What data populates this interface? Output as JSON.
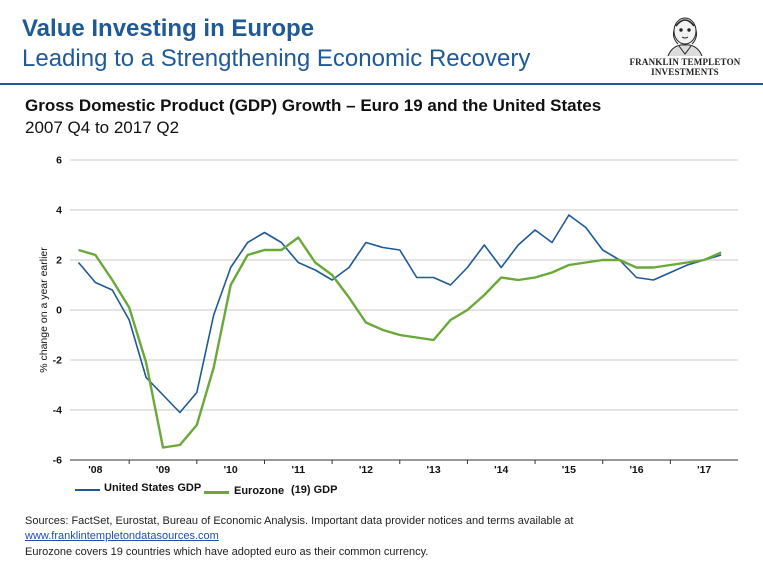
{
  "header": {
    "title": "Value Investing in Europe",
    "subtitle": "Leading to a Strengthening Economic Recovery"
  },
  "logo": {
    "line1": "FRANKLIN TEMPLETON",
    "line2": "INVESTMENTS",
    "icon": "benjamin-franklin-portrait"
  },
  "chart_data": {
    "type": "line",
    "title": "Gross Domestic Product (GDP) Growth – Euro 19 and the United States",
    "subtitle": "2007 Q4 to 2017 Q2",
    "ylabel": "% change on a year earlier",
    "xlabel": "",
    "ylim": [
      -6,
      6
    ],
    "yticks": [
      6,
      4,
      2,
      0,
      -2,
      -4,
      -6
    ],
    "xlim": [
      2007.625,
      2017.5
    ],
    "xticks": [
      {
        "label": "'08",
        "x": 2008
      },
      {
        "label": "'09",
        "x": 2009
      },
      {
        "label": "'10",
        "x": 2010
      },
      {
        "label": "'11",
        "x": 2011
      },
      {
        "label": "'12",
        "x": 2012
      },
      {
        "label": "'13",
        "x": 2013
      },
      {
        "label": "'14",
        "x": 2014
      },
      {
        "label": "'15",
        "x": 2015
      },
      {
        "label": "'16",
        "x": 2016
      },
      {
        "label": "'17",
        "x": 2017
      }
    ],
    "grid": "horizontal",
    "legend_position": "bottom-left",
    "series": [
      {
        "name": "United States GDP",
        "color": "#1f5a96",
        "x": [
          2007.75,
          2008.0,
          2008.25,
          2008.5,
          2008.75,
          2009.0,
          2009.25,
          2009.5,
          2009.75,
          2010.0,
          2010.25,
          2010.5,
          2010.75,
          2011.0,
          2011.25,
          2011.5,
          2011.75,
          2012.0,
          2012.25,
          2012.5,
          2012.75,
          2013.0,
          2013.25,
          2013.5,
          2013.75,
          2014.0,
          2014.25,
          2014.5,
          2014.75,
          2015.0,
          2015.25,
          2015.5,
          2015.75,
          2016.0,
          2016.25,
          2016.5,
          2016.75,
          2017.0,
          2017.25
        ],
        "values": [
          1.9,
          1.1,
          0.8,
          -0.4,
          -2.7,
          -3.4,
          -4.1,
          -3.3,
          -0.2,
          1.7,
          2.7,
          3.1,
          2.7,
          1.9,
          1.6,
          1.2,
          1.7,
          2.7,
          2.5,
          2.4,
          1.3,
          1.3,
          1.0,
          1.7,
          2.6,
          1.7,
          2.6,
          3.2,
          2.7,
          3.8,
          3.3,
          2.4,
          2.0,
          1.3,
          1.2,
          1.5,
          1.8,
          2.0,
          2.2
        ]
      },
      {
        "name": "Eurozone (19) GDP",
        "color": "#6aa83a",
        "x": [
          2007.75,
          2008.0,
          2008.25,
          2008.5,
          2008.75,
          2009.0,
          2009.25,
          2009.5,
          2009.75,
          2010.0,
          2010.25,
          2010.5,
          2010.75,
          2011.0,
          2011.25,
          2011.5,
          2011.75,
          2012.0,
          2012.25,
          2012.5,
          2012.75,
          2013.0,
          2013.25,
          2013.5,
          2013.75,
          2014.0,
          2014.25,
          2014.5,
          2014.75,
          2015.0,
          2015.25,
          2015.5,
          2015.75,
          2016.0,
          2016.25,
          2016.5,
          2016.75,
          2017.0,
          2017.25
        ],
        "values": [
          2.4,
          2.2,
          1.2,
          0.1,
          -2.1,
          -5.5,
          -5.4,
          -4.6,
          -2.3,
          1.0,
          2.2,
          2.4,
          2.4,
          2.9,
          1.9,
          1.4,
          0.5,
          -0.5,
          -0.8,
          -1.0,
          -1.1,
          -1.2,
          -0.4,
          0.0,
          0.6,
          1.3,
          1.2,
          1.3,
          1.5,
          1.8,
          1.9,
          2.0,
          2.0,
          1.7,
          1.7,
          1.8,
          1.9,
          2.0,
          2.3
        ]
      }
    ]
  },
  "legend": {
    "us_label": "United States GDP",
    "eu_label_a": "Eurozone",
    "eu_label_b": "(19) GDP"
  },
  "footer": {
    "sources": "Sources: FactSet,  Eurostat,  Bureau of Economic Analysis. Important data provider notices and terms available at",
    "link": "www.franklintempletondatasources.com",
    "note": "Eurozone covers 19 countries which have adopted euro as their common currency."
  }
}
